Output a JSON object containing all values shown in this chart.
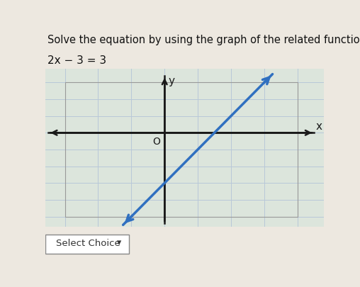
{
  "title_line1": "Solve the equation by using the graph of the related function.",
  "title_line2": "2x − 3 = 3",
  "background_color": "#ede8e0",
  "graph_bg": "#dde8e0",
  "outer_bg": "#e8e0d8",
  "grid_color": "#b8c8d8",
  "axis_color": "#1a1a1a",
  "line_color": "#3070c0",
  "xmin": -3,
  "xmax": 4,
  "ymin": -5,
  "ymax": 3,
  "slope": 2,
  "intercept": -3,
  "xlabel": "x",
  "ylabel": "y",
  "origin_label": "O",
  "select_label": "Select Choice",
  "title_fontsize": 10.5,
  "eq_fontsize": 11
}
